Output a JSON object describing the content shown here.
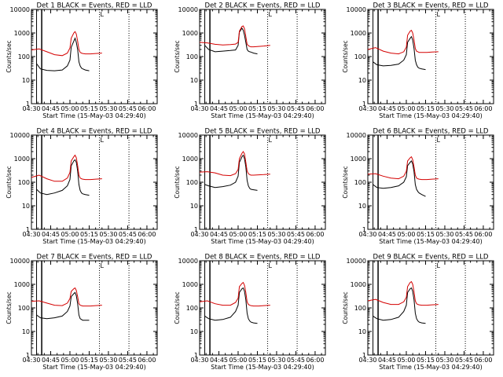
{
  "figure": {
    "xlabel": "Start Time (15-May-03 04:29:40)",
    "ylabel": "Counts/sec",
    "x_tick_labels": [
      "04:30",
      "04:45",
      "05:00",
      "05:15",
      "05:30",
      "05:45",
      "06:00"
    ],
    "y_tick_labels": [
      "1",
      "10",
      "100",
      "1000",
      "10000"
    ],
    "colors": {
      "events": "#000000",
      "lld": "#d40000"
    },
    "vertical_line_label": "L"
  },
  "chart_data": [
    {
      "type": "line",
      "title": "Det 1  BLACK = Events, RED = LLD",
      "xlabel": "Start Time (15-May-03 04:29:40)",
      "ylabel": "Counts/sec",
      "xlim": [
        0,
        98
      ],
      "ylim": [
        1,
        10000
      ],
      "yscale": "log",
      "markers_min": [
        4,
        8,
        53,
        76
      ],
      "series": [
        {
          "name": "Events",
          "color": "#000000",
          "x": [
            4,
            7,
            12,
            18,
            24,
            28,
            30,
            31,
            33,
            34,
            35,
            36,
            37,
            38,
            39,
            40,
            42,
            45
          ],
          "y": [
            50,
            30,
            26,
            25,
            27,
            40,
            70,
            250,
            450,
            600,
            400,
            200,
            60,
            40,
            32,
            30,
            27,
            25
          ]
        },
        {
          "name": "LLD",
          "color": "#d40000",
          "x": [
            0,
            6,
            12,
            18,
            24,
            28,
            30,
            31,
            33,
            34,
            35,
            36,
            37,
            38,
            39,
            40,
            42,
            46,
            50,
            55
          ],
          "y": [
            190,
            210,
            160,
            120,
            110,
            140,
            230,
            600,
            1000,
            1150,
            900,
            450,
            200,
            150,
            140,
            135,
            130,
            130,
            135,
            140
          ]
        }
      ]
    },
    {
      "type": "line",
      "title": "Det 2  BLACK = Events, RED = LLD",
      "xlabel": "Start Time (15-May-03 04:29:40)",
      "ylabel": "Counts/sec",
      "xlim": [
        0,
        98
      ],
      "ylim": [
        1,
        10000
      ],
      "yscale": "log",
      "markers_min": [
        4,
        8,
        53,
        76
      ],
      "series": [
        {
          "name": "Events",
          "color": "#000000",
          "x": [
            4,
            7,
            12,
            18,
            24,
            28,
            30,
            31,
            33,
            34,
            35,
            36,
            37,
            38,
            39,
            40,
            42,
            45
          ],
          "y": [
            300,
            200,
            160,
            170,
            180,
            190,
            300,
            1100,
            1600,
            1300,
            800,
            400,
            200,
            170,
            160,
            155,
            140,
            130
          ]
        },
        {
          "name": "LLD",
          "color": "#d40000",
          "x": [
            0,
            6,
            12,
            18,
            24,
            28,
            30,
            31,
            33,
            34,
            35,
            36,
            37,
            38,
            39,
            40,
            42,
            46,
            50,
            55
          ],
          "y": [
            400,
            380,
            330,
            310,
            320,
            340,
            400,
            1200,
            1900,
            2000,
            1500,
            700,
            330,
            290,
            270,
            260,
            260,
            270,
            280,
            300
          ]
        }
      ]
    },
    {
      "type": "line",
      "title": "Det 3  BLACK = Events, RED = LLD",
      "xlabel": "Start Time (15-May-03 04:29:40)",
      "ylabel": "Counts/sec",
      "xlim": [
        0,
        98
      ],
      "ylim": [
        1,
        10000
      ],
      "yscale": "log",
      "markers_min": [
        4,
        8,
        53,
        76
      ],
      "series": [
        {
          "name": "Events",
          "color": "#000000",
          "x": [
            4,
            7,
            12,
            18,
            24,
            28,
            30,
            31,
            33,
            34,
            35,
            36,
            37,
            38,
            39,
            40,
            42,
            45
          ],
          "y": [
            60,
            45,
            40,
            42,
            48,
            70,
            120,
            400,
            600,
            700,
            500,
            220,
            70,
            45,
            35,
            32,
            30,
            28
          ]
        },
        {
          "name": "LLD",
          "color": "#d40000",
          "x": [
            0,
            6,
            12,
            18,
            24,
            28,
            30,
            31,
            33,
            34,
            35,
            36,
            37,
            38,
            39,
            40,
            42,
            46,
            50,
            55
          ],
          "y": [
            200,
            240,
            170,
            140,
            130,
            160,
            250,
            800,
            1200,
            1300,
            1000,
            500,
            220,
            170,
            160,
            150,
            150,
            150,
            155,
            160
          ]
        }
      ]
    },
    {
      "type": "line",
      "title": "Det 4  BLACK = Events, RED = LLD",
      "xlabel": "Start Time (15-May-03 04:29:40)",
      "ylabel": "Counts/sec",
      "xlim": [
        0,
        98
      ],
      "ylim": [
        1,
        10000
      ],
      "yscale": "log",
      "markers_min": [
        4,
        8,
        53,
        76
      ],
      "series": [
        {
          "name": "Events",
          "color": "#000000",
          "x": [
            4,
            7,
            12,
            18,
            24,
            28,
            30,
            31,
            33,
            34,
            35,
            36,
            37,
            38,
            39,
            40,
            42,
            45
          ],
          "y": [
            50,
            35,
            30,
            35,
            45,
            70,
            130,
            500,
            800,
            900,
            700,
            300,
            80,
            45,
            35,
            32,
            30,
            28
          ]
        },
        {
          "name": "LLD",
          "color": "#d40000",
          "x": [
            0,
            6,
            12,
            18,
            24,
            28,
            30,
            31,
            33,
            34,
            35,
            36,
            37,
            38,
            39,
            40,
            42,
            46,
            50,
            55
          ],
          "y": [
            160,
            200,
            140,
            110,
            110,
            150,
            260,
            800,
            1200,
            1400,
            1100,
            500,
            200,
            150,
            140,
            135,
            130,
            130,
            135,
            140
          ]
        }
      ]
    },
    {
      "type": "line",
      "title": "Det 5  BLACK = Events, RED = LLD",
      "xlabel": "Start Time (15-May-03 04:29:40)",
      "ylabel": "Counts/sec",
      "xlim": [
        0,
        98
      ],
      "ylim": [
        1,
        10000
      ],
      "yscale": "log",
      "markers_min": [
        4,
        8,
        53,
        76
      ],
      "series": [
        {
          "name": "Events",
          "color": "#000000",
          "x": [
            4,
            7,
            12,
            18,
            24,
            28,
            30,
            31,
            33,
            34,
            35,
            36,
            37,
            38,
            39,
            40,
            42,
            45
          ],
          "y": [
            80,
            70,
            60,
            65,
            75,
            100,
            180,
            700,
            1200,
            1400,
            1000,
            450,
            120,
            70,
            55,
            50,
            48,
            45
          ]
        },
        {
          "name": "LLD",
          "color": "#d40000",
          "x": [
            0,
            6,
            12,
            18,
            24,
            28,
            30,
            31,
            33,
            34,
            35,
            36,
            37,
            38,
            39,
            40,
            42,
            46,
            50,
            55
          ],
          "y": [
            270,
            280,
            250,
            200,
            190,
            230,
            350,
            1000,
            1700,
            2000,
            1600,
            700,
            300,
            230,
            210,
            200,
            200,
            205,
            210,
            220
          ]
        }
      ]
    },
    {
      "type": "line",
      "title": "Det 6  BLACK = Events, RED = LLD",
      "xlabel": "Start Time (15-May-03 04:29:40)",
      "ylabel": "Counts/sec",
      "xlim": [
        0,
        98
      ],
      "ylim": [
        1,
        10000
      ],
      "yscale": "log",
      "markers_min": [
        4,
        8,
        53,
        76
      ],
      "series": [
        {
          "name": "Events",
          "color": "#000000",
          "x": [
            4,
            7,
            12,
            18,
            24,
            28,
            30,
            31,
            33,
            34,
            35,
            36,
            37,
            38,
            39,
            40,
            42,
            45
          ],
          "y": [
            80,
            60,
            55,
            60,
            70,
            100,
            170,
            500,
            700,
            800,
            600,
            280,
            80,
            50,
            40,
            35,
            30,
            25
          ]
        },
        {
          "name": "LLD",
          "color": "#d40000",
          "x": [
            0,
            6,
            12,
            18,
            24,
            28,
            30,
            31,
            33,
            34,
            35,
            36,
            37,
            38,
            39,
            40,
            42,
            46,
            50,
            55
          ],
          "y": [
            220,
            230,
            180,
            150,
            140,
            180,
            290,
            800,
            1100,
            1200,
            900,
            450,
            200,
            150,
            140,
            135,
            130,
            130,
            135,
            140
          ]
        }
      ]
    },
    {
      "type": "line",
      "title": "Det 7  BLACK = Events, RED = LLD",
      "xlabel": "Start Time (15-May-03 04:29:40)",
      "ylabel": "Counts/sec",
      "xlim": [
        0,
        98
      ],
      "ylim": [
        1,
        10000
      ],
      "yscale": "log",
      "markers_min": [
        4,
        8,
        53,
        76
      ],
      "series": [
        {
          "name": "Events",
          "color": "#000000",
          "x": [
            4,
            7,
            12,
            18,
            24,
            28,
            30,
            31,
            33,
            34,
            35,
            36,
            37,
            38,
            39,
            40,
            42,
            45
          ],
          "y": [
            50,
            38,
            35,
            38,
            45,
            70,
            120,
            300,
            400,
            450,
            330,
            150,
            50,
            35,
            32,
            30,
            30,
            30
          ]
        },
        {
          "name": "LLD",
          "color": "#d40000",
          "x": [
            0,
            6,
            12,
            18,
            24,
            28,
            30,
            31,
            33,
            34,
            35,
            36,
            37,
            38,
            39,
            40,
            42,
            46,
            50,
            55
          ],
          "y": [
            190,
            200,
            160,
            130,
            125,
            160,
            250,
            500,
            650,
            700,
            550,
            300,
            150,
            130,
            125,
            120,
            120,
            120,
            125,
            130
          ]
        }
      ]
    },
    {
      "type": "line",
      "title": "Det 8  BLACK = Events, RED = LLD",
      "xlabel": "Start Time (15-May-03 04:29:40)",
      "ylabel": "Counts/sec",
      "xlim": [
        0,
        98
      ],
      "ylim": [
        1,
        10000
      ],
      "yscale": "log",
      "markers_min": [
        4,
        8,
        53,
        76
      ],
      "series": [
        {
          "name": "Events",
          "color": "#000000",
          "x": [
            4,
            7,
            12,
            18,
            24,
            28,
            30,
            31,
            33,
            34,
            35,
            36,
            37,
            38,
            39,
            40,
            42,
            45
          ],
          "y": [
            45,
            35,
            30,
            32,
            40,
            70,
            130,
            450,
            650,
            700,
            500,
            220,
            60,
            35,
            28,
            25,
            23,
            22
          ]
        },
        {
          "name": "LLD",
          "color": "#d40000",
          "x": [
            0,
            6,
            12,
            18,
            24,
            28,
            30,
            31,
            33,
            34,
            35,
            36,
            37,
            38,
            39,
            40,
            42,
            46,
            50,
            55
          ],
          "y": [
            180,
            200,
            150,
            130,
            130,
            170,
            260,
            800,
            1100,
            1200,
            900,
            450,
            180,
            140,
            130,
            125,
            120,
            120,
            125,
            130
          ]
        }
      ]
    },
    {
      "type": "line",
      "title": "Det 9  BLACK = Events, RED = LLD",
      "xlabel": "Start Time (15-May-03 04:29:40)",
      "ylabel": "Counts/sec",
      "xlim": [
        0,
        98
      ],
      "ylim": [
        1,
        10000
      ],
      "yscale": "log",
      "markers_min": [
        4,
        8,
        53,
        76
      ],
      "series": [
        {
          "name": "Events",
          "color": "#000000",
          "x": [
            4,
            7,
            12,
            18,
            24,
            28,
            30,
            31,
            33,
            34,
            35,
            36,
            37,
            38,
            39,
            40,
            42,
            45
          ],
          "y": [
            45,
            35,
            30,
            32,
            40,
            70,
            130,
            450,
            650,
            700,
            500,
            220,
            60,
            35,
            28,
            25,
            23,
            22
          ]
        },
        {
          "name": "LLD",
          "color": "#d40000",
          "x": [
            0,
            6,
            12,
            18,
            24,
            28,
            30,
            31,
            33,
            34,
            35,
            36,
            37,
            38,
            39,
            40,
            42,
            46,
            50,
            55
          ],
          "y": [
            200,
            230,
            170,
            140,
            140,
            180,
            280,
            800,
            1200,
            1300,
            1000,
            480,
            200,
            150,
            140,
            135,
            130,
            130,
            135,
            140
          ]
        }
      ]
    }
  ]
}
